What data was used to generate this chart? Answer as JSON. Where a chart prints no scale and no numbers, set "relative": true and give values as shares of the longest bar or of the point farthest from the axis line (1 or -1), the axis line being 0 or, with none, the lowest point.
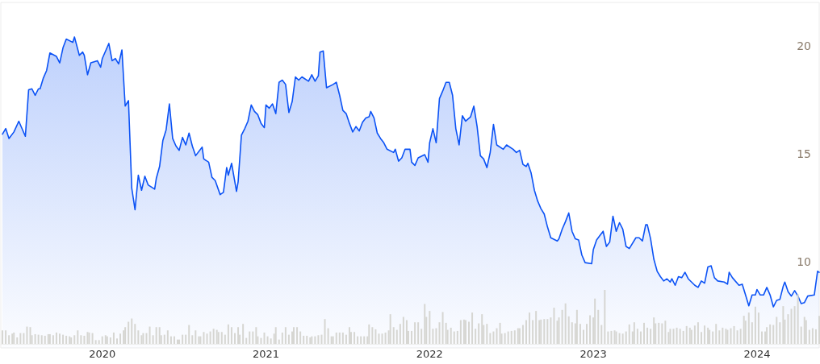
{
  "chart_data": [
    {
      "type": "area",
      "xlim": [
        2019.38,
        2024.38
      ],
      "xticks": [
        2020,
        2021,
        2022,
        2023,
        2024
      ],
      "ylim": [
        6,
        22
      ],
      "yticks": [
        10,
        15,
        20
      ],
      "tick_labels": "y",
      "marker": "none",
      "line_style": "solid",
      "series": [
        {
          "color": "#0b52f5",
          "x": [
            2019.39,
            2019.41,
            2019.43,
            2019.46,
            2019.49,
            2019.53,
            2019.55,
            2019.57,
            2019.59,
            2019.61,
            2019.62,
            2019.64,
            2019.66,
            2019.68,
            2019.72,
            2019.74,
            2019.76,
            2019.78,
            2019.82,
            2019.83,
            2019.86,
            2019.88,
            2019.89,
            2019.91,
            2019.93,
            2019.97,
            2019.99,
            2020.0,
            2020.04,
            2020.06,
            2020.08,
            2020.1,
            2020.12,
            2020.14,
            2020.16,
            2020.18,
            2020.2,
            2020.22,
            2020.24,
            2020.26,
            2020.28,
            2020.32,
            2020.33,
            2020.35,
            2020.37,
            2020.39,
            2020.41,
            2020.43,
            2020.45,
            2020.47,
            2020.49,
            2020.51,
            2020.53,
            2020.55,
            2020.57,
            2020.61,
            2020.62,
            2020.65,
            2020.67,
            2020.69,
            2020.72,
            2020.74,
            2020.76,
            2020.77,
            2020.79,
            2020.82,
            2020.83,
            2020.85,
            2020.87,
            2020.89,
            2020.91,
            2020.93,
            2020.95,
            2020.97,
            2020.99,
            2021.0,
            2021.02,
            2021.04,
            2021.06,
            2021.08,
            2021.1,
            2021.12,
            2021.14,
            2021.16,
            2021.18,
            2021.2,
            2021.22,
            2021.26,
            2021.28,
            2021.3,
            2021.32,
            2021.33,
            2021.35,
            2021.37,
            2021.41,
            2021.43,
            2021.45,
            2021.47,
            2021.49,
            2021.51,
            2021.53,
            2021.55,
            2021.57,
            2021.59,
            2021.61,
            2021.63,
            2021.64,
            2021.66,
            2021.68,
            2021.7,
            2021.72,
            2021.74,
            2021.78,
            2021.79,
            2021.81,
            2021.83,
            2021.85,
            2021.88,
            2021.89,
            2021.91,
            2021.93,
            2021.97,
            2021.99,
            2022.0,
            2022.02,
            2022.04,
            2022.06,
            2022.08,
            2022.1,
            2022.12,
            2022.14,
            2022.16,
            2022.18,
            2022.2,
            2022.22,
            2022.25,
            2022.27,
            2022.29,
            2022.31,
            2022.33,
            2022.35,
            2022.37,
            2022.39,
            2022.41,
            2022.45,
            2022.47,
            2022.51,
            2022.53,
            2022.55,
            2022.57,
            2022.59,
            2022.6,
            2022.62,
            2022.64,
            2022.66,
            2022.68,
            2022.7,
            2022.72,
            2022.74,
            2022.78,
            2022.79,
            2022.81,
            2022.83,
            2022.85,
            2022.87,
            2022.89,
            2022.91,
            2022.93,
            2022.95,
            2022.99,
            2023.0,
            2023.02,
            2023.04,
            2023.06,
            2023.08,
            2023.1,
            2023.12,
            2023.14,
            2023.16,
            2023.18,
            2023.2,
            2023.22,
            2023.26,
            2023.28,
            2023.3,
            2023.32,
            2023.33,
            2023.35,
            2023.37,
            2023.39,
            2023.41,
            2023.43,
            2023.45,
            2023.47,
            2023.48,
            2023.5,
            2023.52,
            2023.54,
            2023.56,
            2023.58,
            2023.62,
            2023.64,
            2023.66,
            2023.68,
            2023.7,
            2023.72,
            2023.74,
            2023.76,
            2023.8,
            2023.82,
            2023.83,
            2023.85,
            2023.89,
            2023.91,
            2023.93,
            2023.95,
            2023.97,
            2023.99,
            2024.0,
            2024.02,
            2024.04,
            2024.06,
            2024.08,
            2024.1,
            2024.12,
            2024.14,
            2024.16,
            2024.17,
            2024.19,
            2024.21,
            2024.23,
            2024.25,
            2024.27,
            2024.29,
            2024.31,
            2024.35,
            2024.37,
            2024.38
          ],
          "values": [
            15.9,
            16.16,
            15.7,
            16.0,
            16.5,
            15.8,
            17.95,
            18.0,
            17.7,
            18.0,
            18.0,
            18.5,
            18.85,
            19.66,
            19.5,
            19.2,
            19.9,
            20.3,
            20.15,
            20.4,
            19.55,
            19.7,
            19.55,
            18.65,
            19.2,
            19.3,
            19.0,
            19.4,
            20.1,
            19.3,
            19.4,
            19.15,
            19.8,
            17.2,
            17.45,
            13.4,
            12.4,
            14.0,
            13.3,
            13.95,
            13.55,
            13.35,
            13.85,
            14.4,
            15.6,
            16.1,
            17.3,
            15.7,
            15.35,
            15.15,
            15.75,
            15.4,
            15.95,
            15.35,
            14.9,
            15.3,
            14.75,
            14.6,
            13.9,
            13.75,
            13.1,
            13.2,
            14.35,
            14.0,
            14.55,
            13.25,
            13.7,
            15.85,
            16.15,
            16.5,
            17.25,
            16.95,
            16.8,
            16.4,
            16.2,
            17.25,
            17.1,
            17.3,
            16.85,
            18.3,
            18.4,
            18.2,
            16.9,
            17.4,
            18.55,
            18.4,
            18.55,
            18.35,
            18.65,
            18.35,
            18.6,
            19.7,
            19.75,
            18.05,
            18.2,
            18.3,
            17.7,
            17.0,
            16.85,
            16.4,
            16.0,
            16.25,
            16.05,
            16.45,
            16.65,
            16.7,
            16.95,
            16.65,
            15.95,
            15.7,
            15.5,
            15.2,
            15.05,
            15.2,
            14.65,
            14.8,
            15.2,
            15.2,
            14.6,
            14.45,
            14.8,
            14.95,
            14.6,
            15.5,
            16.15,
            15.5,
            17.55,
            17.9,
            18.3,
            18.3,
            17.7,
            16.15,
            15.4,
            16.75,
            16.5,
            16.7,
            17.2,
            16.25,
            14.9,
            14.75,
            14.35,
            15.05,
            16.35,
            15.4,
            15.2,
            15.4,
            15.2,
            15.05,
            15.15,
            14.5,
            14.4,
            14.55,
            14.1,
            13.3,
            12.8,
            12.45,
            12.2,
            11.6,
            11.1,
            10.95,
            11.05,
            11.5,
            11.85,
            12.25,
            11.4,
            11.05,
            11.0,
            10.3,
            9.95,
            9.9,
            10.55,
            11.0,
            11.2,
            11.4,
            10.7,
            10.9,
            12.1,
            11.4,
            11.8,
            11.5,
            10.7,
            10.6,
            11.1,
            11.1,
            10.95,
            11.7,
            11.7,
            11.05,
            10.1,
            9.55,
            9.3,
            9.1,
            9.2,
            9.05,
            9.2,
            8.9,
            9.3,
            9.25,
            9.5,
            9.2,
            8.9,
            8.8,
            9.1,
            9.0,
            9.75,
            9.8,
            9.25,
            9.1,
            9.05,
            8.95,
            9.5,
            9.25,
            8.9,
            8.95,
            8.45,
            7.95,
            8.45,
            8.45,
            8.7,
            8.45,
            8.45,
            8.8,
            8.45,
            7.9,
            8.2,
            8.25,
            8.85,
            9.05,
            8.6,
            8.4,
            8.65,
            8.4,
            8.05,
            8.1,
            8.4,
            8.45,
            9.55,
            9.5
          ]
        }
      ]
    },
    {
      "type": "bar",
      "relative": true,
      "tick_labels": "x",
      "xlim": [
        2019.38,
        2024.38
      ],
      "xticks": [
        2020,
        2021,
        2022,
        2023,
        2024
      ],
      "series": [
        {
          "color": "#d6d6d2",
          "x": [
            2019.39,
            2019.41,
            2019.43,
            2019.45,
            2019.46,
            2019.48,
            2019.5,
            2019.52,
            2019.54,
            2019.56,
            2019.57,
            2019.59,
            2019.61,
            2019.63,
            2019.65,
            2019.67,
            2019.68,
            2019.7,
            2019.72,
            2019.74,
            2019.76,
            2019.78,
            2019.8,
            2019.81,
            2019.83,
            2019.85,
            2019.87,
            2019.89,
            2019.91,
            2019.92,
            2019.94,
            2019.96,
            2019.98,
            2020.0,
            2020.02,
            2020.03,
            2020.05,
            2020.07,
            2020.09,
            2020.11,
            2020.13,
            2020.14,
            2020.16,
            2020.18,
            2020.2,
            2020.22,
            2020.24,
            2020.25,
            2020.27,
            2020.29,
            2020.31,
            2020.33,
            2020.35,
            2020.36,
            2020.38,
            2020.4,
            2020.42,
            2020.44,
            2020.46,
            2020.47,
            2020.49,
            2020.51,
            2020.53,
            2020.55,
            2020.57,
            2020.59,
            2020.6,
            2020.62,
            2020.64,
            2020.66,
            2020.68,
            2020.7,
            2020.71,
            2020.73,
            2020.75,
            2020.77,
            2020.79,
            2020.81,
            2020.83,
            2020.84,
            2020.86,
            2020.88,
            2020.9,
            2020.92,
            2020.94,
            2020.95,
            2020.97,
            2020.99,
            2021.01,
            2021.03,
            2021.05,
            2021.06,
            2021.08,
            2021.1,
            2021.12,
            2021.14,
            2021.16,
            2021.17,
            2021.19,
            2021.21,
            2021.23,
            2021.25,
            2021.27,
            2021.28,
            2021.3,
            2021.32,
            2021.34,
            2021.36,
            2021.38,
            2021.4,
            2021.41,
            2021.43,
            2021.45,
            2021.47,
            2021.49,
            2021.51,
            2021.52,
            2021.54,
            2021.56,
            2021.58,
            2021.6,
            2021.62,
            2021.63,
            2021.65,
            2021.67,
            2021.69,
            2021.71,
            2021.73,
            2021.75,
            2021.76,
            2021.78,
            2021.8,
            2021.82,
            2021.84,
            2021.86,
            2021.87,
            2021.89,
            2021.91,
            2021.93,
            2021.95,
            2021.97,
            2021.98,
            2022.0,
            2022.02,
            2022.04,
            2022.06,
            2022.08,
            2022.1,
            2022.11,
            2022.13,
            2022.15,
            2022.17,
            2022.19,
            2022.21,
            2022.22,
            2022.24,
            2022.26,
            2022.28,
            2022.3,
            2022.32,
            2022.33,
            2022.35,
            2022.37,
            2022.39,
            2022.41,
            2022.43,
            2022.44,
            2022.46,
            2022.48,
            2022.5,
            2022.52,
            2022.54,
            2022.55,
            2022.57,
            2022.59,
            2022.61,
            2022.63,
            2022.65,
            2022.67,
            2022.68,
            2022.7,
            2022.72,
            2022.74,
            2022.76,
            2022.78,
            2022.79,
            2022.81,
            2022.83,
            2022.85,
            2022.87,
            2022.89,
            2022.9,
            2022.92,
            2022.94,
            2022.96,
            2022.98,
            2023.0,
            2023.01,
            2023.03,
            2023.05,
            2023.07,
            2023.09,
            2023.11,
            2023.13,
            2023.14,
            2023.16,
            2023.18,
            2023.2,
            2023.22,
            2023.24,
            2023.25,
            2023.27,
            2023.29,
            2023.31,
            2023.33,
            2023.35,
            2023.37,
            2023.38,
            2023.4,
            2023.42,
            2023.44,
            2023.46,
            2023.47,
            2023.49,
            2023.51,
            2023.53,
            2023.55,
            2023.57,
            2023.59,
            2023.6,
            2023.62,
            2023.64,
            2023.66,
            2023.68,
            2023.7,
            2023.71,
            2023.73,
            2023.75,
            2023.77,
            2023.79,
            2023.81,
            2023.82,
            2023.84,
            2023.86,
            2023.88,
            2023.9,
            2023.92,
            2023.93,
            2023.95,
            2023.97,
            2023.99,
            2024.01,
            2024.03,
            2024.05,
            2024.06,
            2024.08,
            2024.1,
            2024.12,
            2024.14,
            2024.16,
            2024.17,
            2024.19,
            2024.21,
            2024.23,
            2024.25,
            2024.27,
            2024.29,
            2024.3,
            2024.32,
            2024.34,
            2024.36,
            2024.38
          ],
          "values": [
            0.25,
            0.25,
            0.16,
            0.19,
            0.21,
            0.12,
            0.2,
            0.2,
            0.32,
            0.31,
            0.16,
            0.18,
            0.17,
            0.16,
            0.15,
            0.18,
            0.18,
            0.16,
            0.21,
            0.19,
            0.17,
            0.15,
            0.14,
            0.12,
            0.16,
            0.25,
            0.16,
            0.15,
            0.22,
            0.21,
            0.2,
            0.07,
            0.07,
            0.14,
            0.16,
            0.14,
            0.12,
            0.21,
            0.1,
            0.19,
            0.25,
            0.31,
            0.41,
            0.47,
            0.37,
            0.25,
            0.16,
            0.2,
            0.2,
            0.32,
            0.16,
            0.31,
            0.31,
            0.16,
            0.17,
            0.25,
            0.14,
            0.14,
            0.08,
            0.08,
            0.17,
            0.17,
            0.35,
            0.16,
            0.25,
            0.14,
            0.14,
            0.22,
            0.19,
            0.23,
            0.28,
            0.26,
            0.22,
            0.22,
            0.17,
            0.36,
            0.31,
            0.2,
            0.31,
            0.17,
            0.37,
            0.11,
            0.23,
            0.23,
            0.31,
            0.14,
            0.11,
            0.21,
            0.14,
            0.1,
            0.19,
            0.31,
            0.08,
            0.21,
            0.31,
            0.17,
            0.23,
            0.31,
            0.31,
            0.23,
            0.15,
            0.15,
            0.12,
            0.14,
            0.14,
            0.16,
            0.17,
            0.46,
            0.29,
            0.14,
            0.14,
            0.21,
            0.21,
            0.21,
            0.17,
            0.31,
            0.22,
            0.22,
            0.14,
            0.14,
            0.14,
            0.14,
            0.36,
            0.31,
            0.27,
            0.19,
            0.19,
            0.21,
            0.25,
            0.55,
            0.31,
            0.26,
            0.37,
            0.5,
            0.44,
            0.24,
            0.24,
            0.4,
            0.4,
            0.28,
            0.74,
            0.5,
            0.61,
            0.28,
            0.29,
            0.4,
            0.59,
            0.39,
            0.26,
            0.3,
            0.23,
            0.24,
            0.44,
            0.45,
            0.44,
            0.41,
            0.58,
            0.28,
            0.38,
            0.55,
            0.35,
            0.37,
            0.2,
            0.23,
            0.29,
            0.39,
            0.19,
            0.2,
            0.23,
            0.24,
            0.25,
            0.29,
            0.29,
            0.35,
            0.44,
            0.58,
            0.44,
            0.61,
            0.44,
            0.45,
            0.46,
            0.46,
            0.49,
            0.67,
            0.43,
            0.49,
            0.63,
            0.75,
            0.51,
            0.4,
            0.38,
            0.63,
            0.37,
            0.26,
            0.37,
            0.53,
            0.49,
            0.84,
            0.63,
            0.35,
            1,
            0.23,
            0.24,
            0.25,
            0.23,
            0.2,
            0.19,
            0.23,
            0.36,
            0.23,
            0.4,
            0.28,
            0.23,
            0.39,
            0.3,
            0.28,
            0.49,
            0.38,
            0.39,
            0.38,
            0.43,
            0.22,
            0.28,
            0.28,
            0.3,
            0.28,
            0.24,
            0.33,
            0.3,
            0.26,
            0.34,
            0.4,
            0.22,
            0.34,
            0.3,
            0.26,
            0.23,
            0.37,
            0.25,
            0.3,
            0.28,
            0.26,
            0.29,
            0.33,
            0.25,
            0.28,
            0.52,
            0.43,
            0.58,
            0.4,
            0.69,
            0.58,
            0.23,
            0.23,
            0.31,
            0.36,
            0.35,
            0.5,
            0.4,
            0.7,
            0.45,
            0.55,
            0.65,
            0.7,
            0.92,
            0.32,
            0.5,
            0.44,
            0.26,
            0.29,
            0.27,
            0.52
          ]
        }
      ]
    }
  ]
}
